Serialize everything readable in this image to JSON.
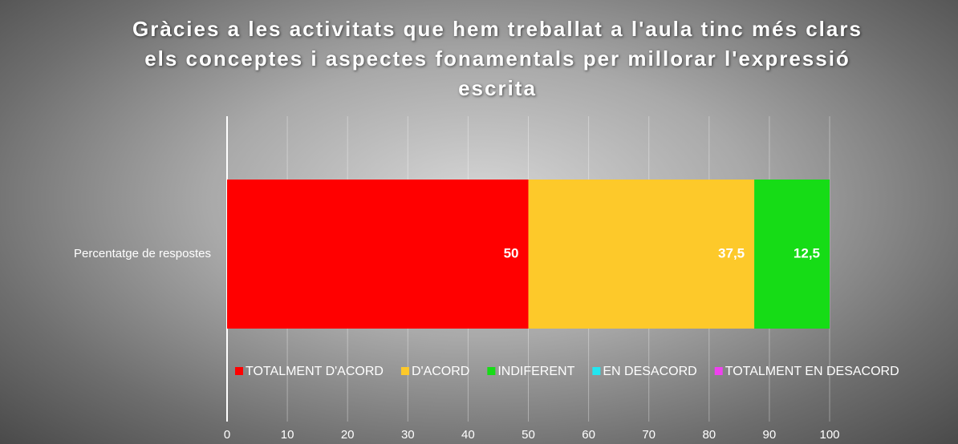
{
  "chart_data": {
    "type": "stacked_bar_horizontal",
    "title": "Gràcies a les activitats que hem treballat a l'aula tinc més clars els conceptes i aspectes fonamentals per millorar l'expressió escrita",
    "categories": [
      "Percentatge de respostes"
    ],
    "series": [
      {
        "name": "TOTALMENT D'ACORD",
        "color": "#ff0000",
        "values": [
          50
        ],
        "value_labels": [
          "50"
        ]
      },
      {
        "name": "D'ACORD",
        "color": "#fdc92a",
        "values": [
          37.5
        ],
        "value_labels": [
          "37,5"
        ]
      },
      {
        "name": "INDIFERENT",
        "color": "#16dc16",
        "values": [
          12.5
        ],
        "value_labels": [
          "12,5"
        ]
      },
      {
        "name": "EN DESACORD",
        "color": "#22e6f0",
        "values": [
          0
        ]
      },
      {
        "name": "TOTALMENT EN DESACORD",
        "color": "#f040f0",
        "values": [
          0
        ]
      }
    ],
    "xlim": [
      0,
      100
    ],
    "xticks": [
      0,
      10,
      20,
      30,
      40,
      50,
      60,
      70,
      80,
      90,
      100
    ],
    "grid": true
  }
}
